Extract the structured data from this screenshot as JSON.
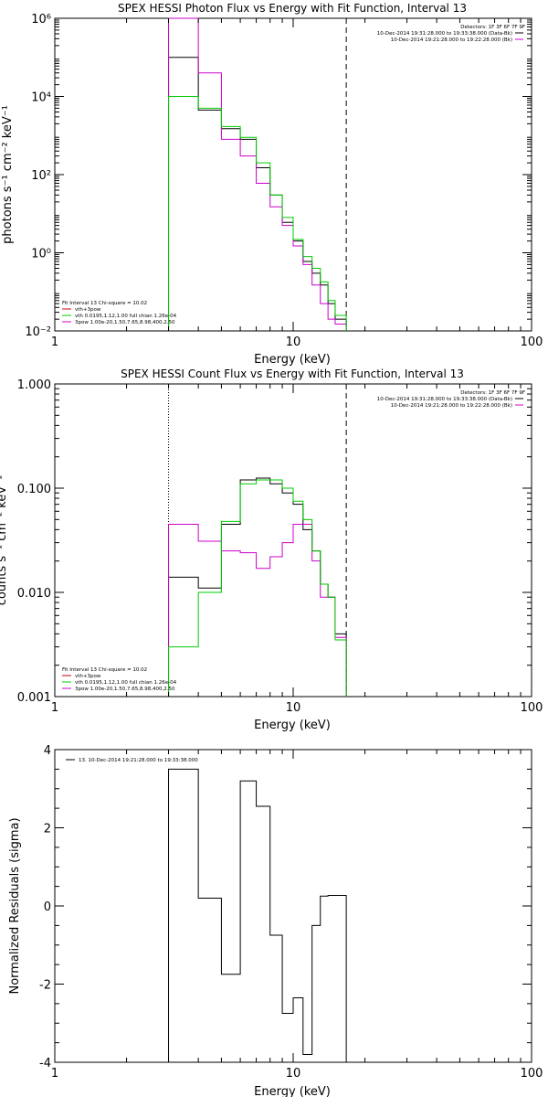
{
  "colors": {
    "black": "#000000",
    "magenta": "#cc00cc",
    "green": "#00cc00",
    "red": "#cc0000"
  },
  "panels": [
    {
      "title": "SPEX HESSI Photon Flux vs Energy with Fit Function, Interval 13",
      "xlabel": "Energy (keV)",
      "ylabel": "photons s⁻¹ cm⁻² keV⁻¹",
      "legend_tr": {
        "header": "Detectors: 1F 3F 6F 7F 9F",
        "items": [
          {
            "text": "10-Dec-2014 19:31:28.000 to 19:33:38.000 (Data-Bk)",
            "color": "black"
          },
          {
            "text": "10-Dec-2014 19:21:28.000 to 19:22:28.000 (Bk)",
            "color": "magenta"
          }
        ]
      },
      "legend_bl": {
        "header": "Fit Interval 13   Chi-square = 10.02",
        "items": [
          {
            "text": "vth+3pow",
            "color": "red"
          },
          {
            "text": "vth 0.0195,1.12,1.00  full chian 1.26e-04",
            "color": "green"
          },
          {
            "text": "3pow 1.00e-20,1.50,7.65,8.98,400,2.50",
            "color": "magenta"
          }
        ]
      }
    },
    {
      "title": "SPEX HESSI Count Flux vs Energy with Fit Function, Interval 13",
      "xlabel": "Energy (keV)",
      "ylabel": "counts s⁻¹ cm⁻² keV⁻¹",
      "legend_tr": {
        "header": "Detectors: 1F 3F 6F 7F 9F",
        "items": [
          {
            "text": "10-Dec-2014 19:31:28.000 to 19:33:38.000 (Data-Bk)",
            "color": "black"
          },
          {
            "text": "10-Dec-2014 19:21:28.000 to 19:22:28.000 (Bk)",
            "color": "magenta"
          }
        ]
      },
      "legend_bl": {
        "header": "Fit Interval 13   Chi-square = 10.02",
        "items": [
          {
            "text": "vth+3pow",
            "color": "red"
          },
          {
            "text": "vth 0.0195,1.12,1.00  full chian 1.26e-04",
            "color": "green"
          },
          {
            "text": "3pow 1.00e-20,1.50,7.65,8.98,400,2.50",
            "color": "magenta"
          }
        ]
      }
    },
    {
      "title": "",
      "xlabel": "Energy (keV)",
      "ylabel": "Normalized Residuals (sigma)",
      "legend_tl": {
        "items": [
          {
            "text": "13. 10-Dec-2014 19:21:28.000 to 19:33:38.000",
            "color": "black"
          }
        ]
      }
    }
  ],
  "chart_data": [
    {
      "type": "line",
      "title": "SPEX HESSI Photon Flux vs Energy with Fit Function, Interval 13",
      "xlabel": "Energy (keV)",
      "ylabel": "photons s⁻¹ cm⁻² keV⁻¹",
      "xscale": "log",
      "yscale": "log",
      "xlim": [
        1,
        100
      ],
      "ylim": [
        0.01,
        1000000
      ],
      "xticks": [
        {
          "v": 1,
          "label": "1"
        },
        {
          "v": 10,
          "label": "10"
        },
        {
          "v": 100,
          "label": "100"
        }
      ],
      "yticks": [
        {
          "v": 0.01,
          "label": "10⁻²"
        },
        {
          "v": 1,
          "label": "10⁰"
        },
        {
          "v": 100,
          "label": "10²"
        },
        {
          "v": 10000,
          "label": "10⁴"
        },
        {
          "v": 1000000,
          "label": "10⁶"
        }
      ],
      "vlines": [
        {
          "x": 3.0,
          "style": "dotted"
        },
        {
          "x": 16.7,
          "style": "dashed"
        }
      ],
      "bin_edges": [
        3.0,
        4.0,
        5.0,
        6.0,
        7.0,
        8.0,
        9.0,
        10.0,
        11.0,
        12.0,
        13.0,
        14.0,
        15.0,
        16.7
      ],
      "series": [
        {
          "name": "10-Dec-2014 19:31:28.000 to 19:33:38.000 (Data-Bk)",
          "color": "black",
          "values": [
            100000,
            4500,
            1500,
            800,
            150,
            30,
            6,
            2,
            0.6,
            0.3,
            0.15,
            0.05,
            0.02
          ]
        },
        {
          "name": "3pow 1.00e-20,1.50,7.65,8.98,400,2.50",
          "color": "magenta",
          "values": [
            1000000,
            40000,
            800,
            300,
            60,
            15,
            5,
            1.5,
            0.5,
            0.15,
            0.05,
            0.02,
            0.015
          ]
        },
        {
          "name": "vth 0.0195,1.12,1.00  full chian 1.26e-04",
          "color": "green",
          "values": [
            10000,
            5000,
            1700,
            900,
            200,
            30,
            8,
            2.2,
            0.8,
            0.4,
            0.18,
            0.06,
            0.025
          ]
        }
      ]
    },
    {
      "type": "line",
      "title": "SPEX HESSI Count Flux vs Energy with Fit Function, Interval 13",
      "xlabel": "Energy (keV)",
      "ylabel": "counts s⁻¹ cm⁻² keV⁻¹",
      "xscale": "log",
      "yscale": "log",
      "xlim": [
        1,
        100
      ],
      "ylim": [
        0.001,
        1.0
      ],
      "xticks": [
        {
          "v": 1,
          "label": "1"
        },
        {
          "v": 10,
          "label": "10"
        },
        {
          "v": 100,
          "label": "100"
        }
      ],
      "yticks": [
        {
          "v": 0.001,
          "label": "0.001"
        },
        {
          "v": 0.01,
          "label": "0.010"
        },
        {
          "v": 0.1,
          "label": "0.100"
        },
        {
          "v": 1.0,
          "label": "1.000"
        }
      ],
      "vlines": [
        {
          "x": 3.0,
          "style": "dotted"
        },
        {
          "x": 16.7,
          "style": "dashed"
        }
      ],
      "bin_edges": [
        3.0,
        4.0,
        5.0,
        6.0,
        7.0,
        8.0,
        9.0,
        10.0,
        11.0,
        12.0,
        13.0,
        14.0,
        15.0,
        16.7
      ],
      "series": [
        {
          "name": "10-Dec-2014 19:31:28.000 to 19:33:38.000 (Data-Bk)",
          "color": "black",
          "values": [
            0.014,
            0.011,
            0.045,
            0.12,
            0.125,
            0.11,
            0.09,
            0.07,
            0.04,
            0.025,
            0.012,
            0.009,
            0.004
          ]
        },
        {
          "name": "10-Dec-2014 19:21:28.000 to 19:22:28.000 (Bk)",
          "color": "magenta",
          "values": [
            0.045,
            0.031,
            0.025,
            0.024,
            0.017,
            0.022,
            0.03,
            0.045,
            0.045,
            0.02,
            0.009,
            0.009,
            0.0037
          ]
        },
        {
          "name": "vth 0.0195,1.12,1.00  full chian 1.26e-04",
          "color": "green",
          "values": [
            0.003,
            0.01,
            0.048,
            0.11,
            0.12,
            0.12,
            0.1,
            0.075,
            0.05,
            0.025,
            0.012,
            0.009,
            0.0035
          ]
        }
      ]
    },
    {
      "type": "line",
      "title": "",
      "xlabel": "Energy (keV)",
      "ylabel": "Normalized Residuals (sigma)",
      "xscale": "log",
      "yscale": "linear",
      "xlim": [
        1,
        100
      ],
      "ylim": [
        -4,
        4
      ],
      "xticks": [
        {
          "v": 1,
          "label": "1"
        },
        {
          "v": 10,
          "label": "10"
        },
        {
          "v": 100,
          "label": "100"
        }
      ],
      "yticks": [
        {
          "v": -4,
          "label": "-4"
        },
        {
          "v": -2,
          "label": "-2"
        },
        {
          "v": 0,
          "label": "0"
        },
        {
          "v": 2,
          "label": "2"
        },
        {
          "v": 4,
          "label": "4"
        }
      ],
      "vlines": [],
      "bin_edges": [
        3.0,
        4.0,
        5.0,
        6.0,
        7.0,
        8.0,
        9.0,
        10.0,
        11.0,
        12.0,
        13.0,
        14.0,
        15.0,
        16.7
      ],
      "series": [
        {
          "name": "13. 10-Dec-2014 19:21:28.000 to 19:33:38.000",
          "color": "black",
          "values": [
            3.5,
            0.2,
            -1.75,
            3.2,
            2.55,
            -0.75,
            -2.75,
            -2.35,
            -3.8,
            -0.5,
            0.25,
            0.27,
            0.27
          ]
        }
      ]
    }
  ]
}
